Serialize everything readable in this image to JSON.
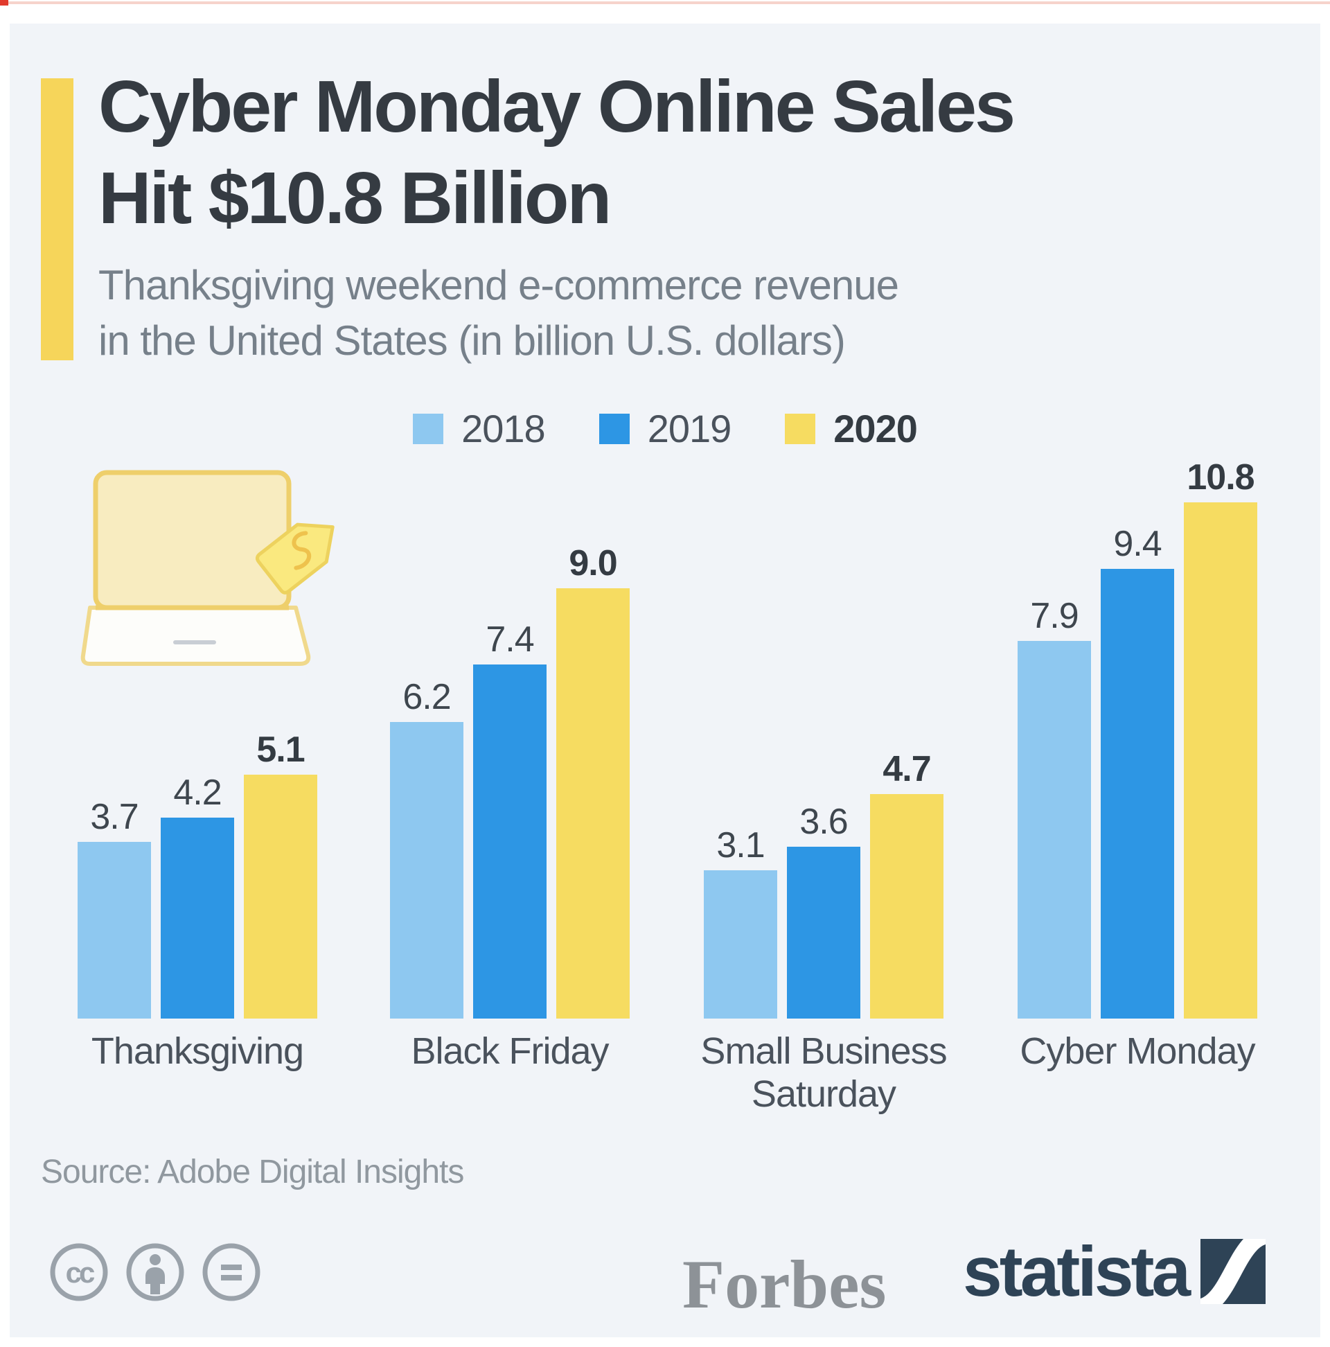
{
  "header": {
    "title_lines": [
      "Cyber Monday Online Sales",
      "Hit $10.8 Billion"
    ],
    "subtitle_lines": [
      "Thanksgiving weekend e-commerce revenue",
      "in the United States (in billion U.S. dollars)"
    ]
  },
  "chart_data": {
    "type": "bar",
    "title": "Cyber Monday Online Sales Hit $10.8 Billion",
    "subtitle": "Thanksgiving weekend e-commerce revenue in the United States (in billion U.S. dollars)",
    "unit": "billion U.S. dollars",
    "categories": [
      "Thanksgiving",
      "Black Friday",
      "Small Business Saturday",
      "Cyber Monday"
    ],
    "series": [
      {
        "name": "2018",
        "color": "#8ec8f0",
        "values": [
          3.7,
          6.2,
          3.1,
          7.9
        ],
        "emphasis": false
      },
      {
        "name": "2019",
        "color": "#2d96e4",
        "values": [
          4.2,
          7.4,
          3.6,
          9.4
        ],
        "emphasis": false
      },
      {
        "name": "2020",
        "color": "#f6dc61",
        "values": [
          5.1,
          9.0,
          4.7,
          10.8
        ],
        "emphasis": true
      }
    ],
    "ylim": [
      0,
      10.8
    ],
    "grid": false,
    "legend_position": "top",
    "value_labels": true
  },
  "footer": {
    "source": "Source: Adobe Digital Insights",
    "publisher": "Forbes",
    "brand": "statista",
    "license_icons": [
      "cc-icon",
      "attribution-person-icon",
      "equality-icon"
    ]
  },
  "decor": {
    "laptop_icon": "laptop-with-price-tag-icon",
    "accent_color": "#f6d55a",
    "background_color": "#f1f4f8",
    "title_color": "#353b42"
  }
}
